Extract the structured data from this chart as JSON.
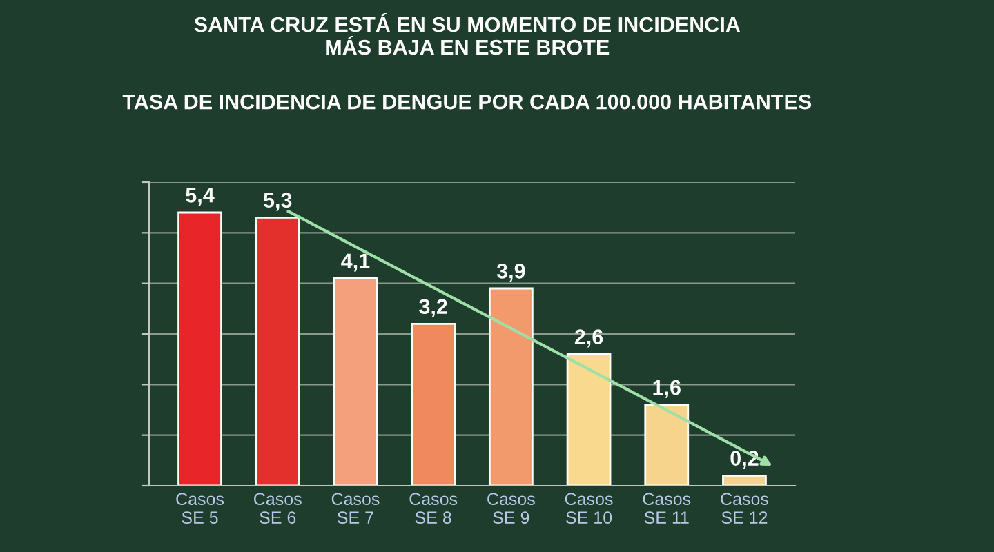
{
  "chart_data": {
    "type": "bar",
    "title": "SANTA CRUZ ESTÁ EN SU MOMENTO DE INCIDENCIA\nMÁS BAJA EN ESTE BROTE",
    "subtitle": "TASA DE INCIDENCIA DE DENGUE POR CADA 100.000 HABITANTES",
    "categories": [
      "Casos\nSE 5",
      "Casos\nSE 6",
      "Casos\nSE 7",
      "Casos\nSE 8",
      "Casos\nSE 9",
      "Casos\nSE 10",
      "Casos\nSE 11",
      "Casos\nSE 12"
    ],
    "values": [
      5.4,
      5.3,
      4.1,
      3.2,
      3.9,
      2.6,
      1.6,
      0.2
    ],
    "value_labels": [
      "5,4",
      "5,3",
      "4,1",
      "3,2",
      "3,9",
      "2,6",
      "1,6",
      "0,2"
    ],
    "colors": [
      "#e8262a",
      "#e3302c",
      "#f4a07c",
      "#f08a5e",
      "#f39a6c",
      "#f9d98e",
      "#f6d48c",
      "#f4d390"
    ],
    "ylim": [
      0,
      6
    ],
    "yticks": [
      {
        "value": 0,
        "label": null
      },
      {
        "value": 1,
        "label": null
      },
      {
        "value": 2,
        "label": null
      },
      {
        "value": 3,
        "label": null
      },
      {
        "value": 4,
        "label": null
      },
      {
        "value": 5,
        "label": null
      },
      {
        "value": 6,
        "label": null
      }
    ],
    "tick_labels": "x",
    "grid": "y"
  }
}
